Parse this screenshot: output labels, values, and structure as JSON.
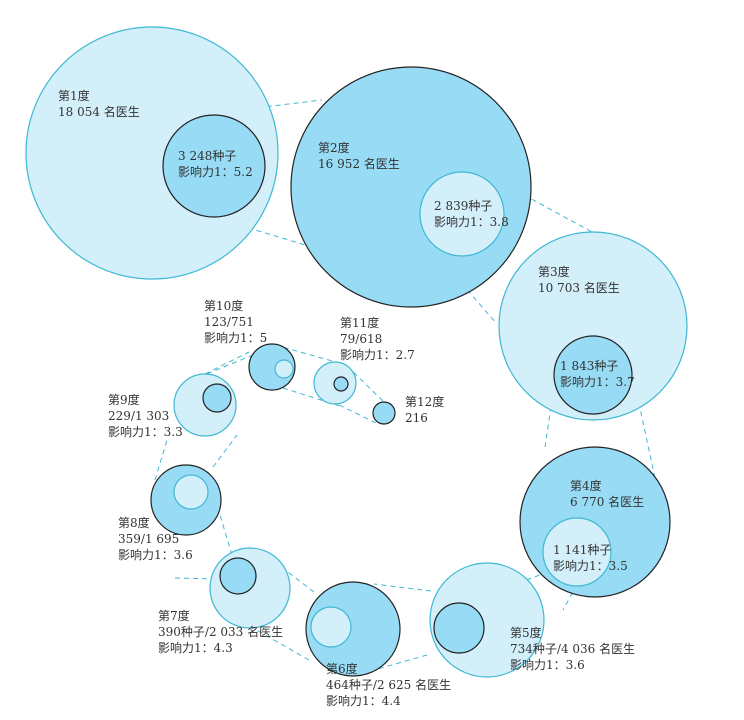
{
  "colors": {
    "outer_light": "#d3effa",
    "outer_dark": "#97dbf5",
    "stroke_cyan": "#3fb8d3",
    "stroke_dark": "#222222",
    "dash": "#3fb8d3"
  },
  "degrees": [
    {
      "id": 1,
      "lines": [
        "第1度",
        "18 054  名医生"
      ],
      "seed_lines": [
        "3 248种子",
        "影响力1：5.2"
      ]
    },
    {
      "id": 2,
      "lines": [
        "第2度",
        "16 952  名医生"
      ],
      "seed_lines": [
        "2 839种子",
        "影响力1：3.8"
      ]
    },
    {
      "id": 3,
      "lines": [
        "第3度",
        "10 703  名医生"
      ],
      "seed_lines": [
        "1 843种子",
        "影响力1：3.7"
      ]
    },
    {
      "id": 4,
      "lines": [
        "第4度",
        "6 770 名医生"
      ],
      "seed_lines": [
        "1 141种子",
        "影响力1：3.5"
      ]
    },
    {
      "id": 5,
      "lines": [
        "第5度",
        "734种子/4 036 名医生",
        "影响力1：3.6"
      ]
    },
    {
      "id": 6,
      "lines": [
        "第6度",
        "464种子/2 625 名医生",
        "影响力1：4.4"
      ]
    },
    {
      "id": 7,
      "lines": [
        "第7度",
        "390种子/2 033 名医生",
        "影响力1：4.3"
      ]
    },
    {
      "id": 8,
      "lines": [
        "第8度",
        "359/1 695",
        "影响力1：3.6"
      ]
    },
    {
      "id": 9,
      "lines": [
        "第9度",
        "229/1 303",
        "影响力1：3.3"
      ]
    },
    {
      "id": 10,
      "lines": [
        "第10度",
        "123/751",
        "影响力1：5"
      ]
    },
    {
      "id": 11,
      "lines": [
        "第11度",
        "79/618",
        "影响力1：2.7"
      ]
    },
    {
      "id": 12,
      "lines": [
        "第12度",
        "216"
      ]
    }
  ]
}
